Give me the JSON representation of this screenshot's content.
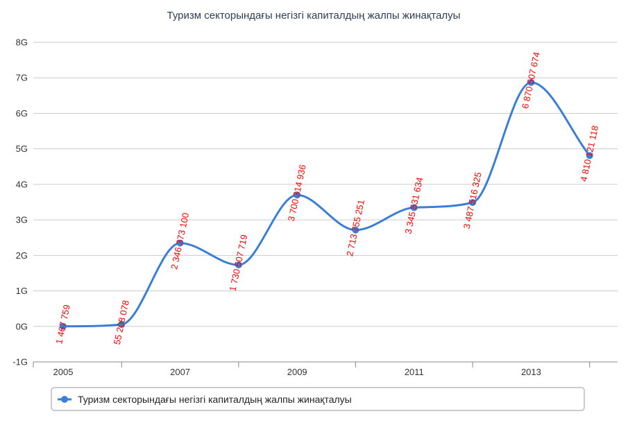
{
  "chart_data": {
    "type": "line",
    "title": "Туризм секторындағы негізгі капиталдың жалпы жинақталуы",
    "xlabel": "",
    "ylabel": "",
    "x": [
      2005,
      2006,
      2007,
      2008,
      2009,
      2010,
      2011,
      2012,
      2013,
      2014
    ],
    "x_tick_labels": [
      "2005",
      "2007",
      "2009",
      "2011",
      "2013"
    ],
    "y_tick_labels": [
      "-1G",
      "0G",
      "1G",
      "2G",
      "3G",
      "4G",
      "5G",
      "6G",
      "7G",
      "8G"
    ],
    "ylim": [
      -1000000000,
      8000000000
    ],
    "grid": true,
    "legend_position": "bottom",
    "series": [
      {
        "name": "Туризм секторындағы негізгі капиталдың жалпы жинақталуы",
        "color": "#3a7fd5",
        "values": [
          1467759,
          55208078,
          2346373100,
          1730507719,
          3700314936,
          2713755251,
          3345531634,
          3487516325,
          6870507674,
          4810121118
        ],
        "labels": [
          "1 467 759",
          "55 208 078",
          "2 346 373 100",
          "1 730 507 719",
          "3 700 314 936",
          "2 713 755 251",
          "3 345 531 634",
          "3 487 516 325",
          "6 870 507 674",
          "4 810 121 118"
        ]
      }
    ],
    "label_color": "#ff0000"
  }
}
